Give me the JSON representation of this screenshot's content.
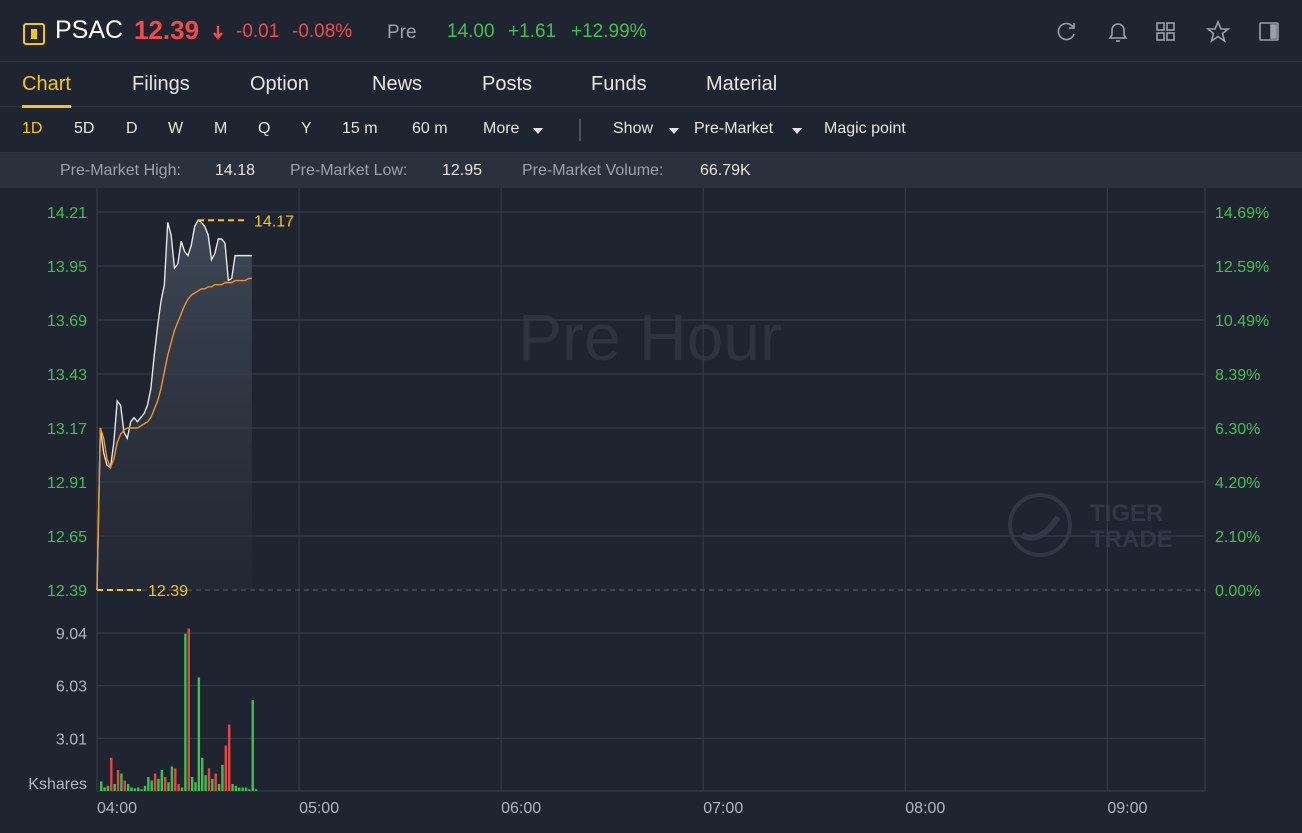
{
  "header": {
    "symbol": "PSAC",
    "price": "12.39",
    "change": "-0.01",
    "change_pct": "-0.08%",
    "session": "Pre",
    "session_price": "14.00",
    "session_change": "+1.61",
    "session_change_pct": "+12.99%"
  },
  "tabs": {
    "items": [
      "Chart",
      "Filings",
      "Option",
      "News",
      "Posts",
      "Funds",
      "Material"
    ],
    "active": 0
  },
  "toolbar": {
    "periods": [
      "1D",
      "5D",
      "D",
      "W",
      "M",
      "Q",
      "Y",
      "15 m",
      "60 m"
    ],
    "active": 0,
    "more": "More",
    "show": "Show",
    "session": "Pre-Market",
    "magic": "Magic point"
  },
  "stats": [
    {
      "label": "Pre-Market High:",
      "value": "14.18"
    },
    {
      "label": "Pre-Market Low:",
      "value": "12.95"
    },
    {
      "label": "Pre-Market Volume:",
      "value": "66.79K"
    }
  ],
  "chart": {
    "watermark": "Pre Hour",
    "logo": [
      "TIGER",
      "TRADE"
    ],
    "x": [
      "04:00",
      "04:01",
      "04:02",
      "04:03",
      "04:04",
      "04:05",
      "04:06",
      "04:07",
      "04:08",
      "04:09",
      "04:10",
      "04:11",
      "04:12",
      "04:13",
      "04:14",
      "04:15",
      "04:16",
      "04:17",
      "04:18",
      "04:19",
      "04:20",
      "04:21",
      "04:22",
      "04:23",
      "04:24",
      "04:25",
      "04:26",
      "04:27",
      "04:28",
      "04:29",
      "04:30",
      "04:31",
      "04:32",
      "04:33",
      "04:34",
      "04:35",
      "04:36",
      "04:37",
      "04:38",
      "04:39",
      "04:40",
      "04:41",
      "04:42",
      "04:43",
      "04:44",
      "04:45",
      "04:46"
    ],
    "xlim": [
      "04:00",
      "09:29"
    ],
    "xticks": [
      "04:00",
      "05:00",
      "06:00",
      "07:00",
      "08:00",
      "09:00"
    ],
    "price": {
      "series": [
        {
          "color": "#e6e6e6",
          "values": [
            12.39,
            13.17,
            13.05,
            12.99,
            12.98,
            13.1,
            13.3,
            13.28,
            13.15,
            13.12,
            13.2,
            13.22,
            13.2,
            13.22,
            13.24,
            13.28,
            13.36,
            13.52,
            13.66,
            13.78,
            13.86,
            14.16,
            14.1,
            13.94,
            13.96,
            14.07,
            14.02,
            14.0,
            14.05,
            14.14,
            14.17,
            14.16,
            14.14,
            14.1,
            13.98,
            14.01,
            14.08,
            14.08,
            14.06,
            13.88,
            13.89,
            14.0,
            14.0,
            14.0,
            14.0,
            14.0,
            14.0
          ]
        },
        {
          "color": "#f0932b",
          "values": [
            12.39,
            13.17,
            13.12,
            13.02,
            12.98,
            13.02,
            13.1,
            13.14,
            13.16,
            13.17,
            13.17,
            13.17,
            13.17,
            13.18,
            13.19,
            13.2,
            13.22,
            13.26,
            13.3,
            13.36,
            13.44,
            13.52,
            13.58,
            13.64,
            13.68,
            13.72,
            13.76,
            13.79,
            13.81,
            13.82,
            13.83,
            13.84,
            13.84,
            13.85,
            13.85,
            13.86,
            13.86,
            13.86,
            13.87,
            13.87,
            13.87,
            13.88,
            13.88,
            13.88,
            13.88,
            13.89,
            13.89
          ]
        }
      ],
      "ylim": [
        12.39,
        14.21
      ],
      "yticks": [
        12.39,
        12.65,
        12.91,
        13.17,
        13.43,
        13.69,
        13.95,
        14.21
      ],
      "y2lim": [
        0,
        14.69
      ],
      "y2ticks": [
        {
          "value": 0,
          "label": "0.00%"
        },
        {
          "value": 2.1,
          "label": "2.10%"
        },
        {
          "value": 4.2,
          "label": "4.20%"
        },
        {
          "value": 6.3,
          "label": "6.30%"
        },
        {
          "value": 8.39,
          "label": "8.39%"
        },
        {
          "value": 10.49,
          "label": "10.49%"
        },
        {
          "value": 12.59,
          "label": "12.59%"
        },
        {
          "value": 14.69,
          "label": "14.69%"
        }
      ],
      "high_marker": 14.17,
      "base_marker": 12.39,
      "marker_color": "#f5c518",
      "grid": true
    },
    "volume": {
      "axis_label": "Kshares",
      "ylim": [
        0,
        9.04
      ],
      "yticks": [
        3.01,
        6.03,
        9.04
      ],
      "values": [
        0.55,
        0.2,
        0.3,
        1.9,
        0.4,
        1.2,
        1.0,
        0.6,
        0.4,
        0.2,
        0.15,
        0.2,
        0.1,
        0.3,
        0.8,
        0.6,
        1.0,
        0.7,
        1.2,
        0.8,
        0.5,
        1.4,
        1.3,
        0.4,
        0.2,
        9.0,
        9.3,
        0.8,
        0.5,
        6.5,
        1.9,
        0.9,
        1.3,
        0.7,
        1.0,
        0.4,
        1.5,
        2.6,
        3.8,
        0.4,
        0.3,
        0.2,
        0.2,
        0.2,
        0.1,
        5.2,
        0.1
      ],
      "colors": [
        "#3ec04f",
        "#3ec04f",
        "#3ec04f",
        "#e84545",
        "#3ec04f",
        "#e84545",
        "#3ec04f",
        "#e84545",
        "#3ec04f",
        "#3ec04f",
        "#3ec04f",
        "#3ec04f",
        "#3ec04f",
        "#3ec04f",
        "#3ec04f",
        "#3ec04f",
        "#e84545",
        "#3ec04f",
        "#3ec04f",
        "#e84545",
        "#3ec04f",
        "#3ec04f",
        "#e84545",
        "#e84545",
        "#3ec04f",
        "#3ec04f",
        "#e84545",
        "#3ec04f",
        "#3ec04f",
        "#3ec04f",
        "#3ec04f",
        "#3ec04f",
        "#e84545",
        "#3ec04f",
        "#e84545",
        "#3ec04f",
        "#3ec04f",
        "#e84545",
        "#e84545",
        "#3ec04f",
        "#3ec04f",
        "#3ec04f",
        "#3ec04f",
        "#3ec04f",
        "#3ec04f",
        "#3ec04f",
        "#3ec04f"
      ]
    }
  }
}
